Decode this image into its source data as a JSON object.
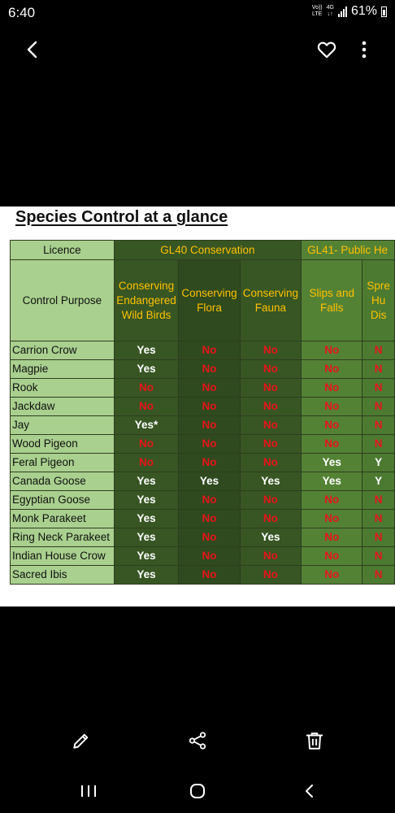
{
  "status_bar": {
    "time": "6:40",
    "volte_top": "Vo))",
    "volte_bottom": "LTE",
    "network": "4G",
    "battery": "61%"
  },
  "doc": {
    "title_main": "Species Control",
    "title_rest": " at a glance",
    "licence_label": "Licence",
    "gl40_label": "GL40 Conservation",
    "gl41_label": "GL41- Public He",
    "control_purpose_label": "Control Purpose",
    "purposes": [
      "Conserving Endangered Wild Birds",
      "Conserving Flora",
      "Conserving Fauna",
      "Slips and Falls",
      "Spre Hu Dis"
    ],
    "rows": [
      {
        "species": "Carrion Crow",
        "values": [
          "Yes",
          "No",
          "No",
          "No",
          "N"
        ]
      },
      {
        "species": "Magpie",
        "values": [
          "Yes",
          "No",
          "No",
          "No",
          "N"
        ]
      },
      {
        "species": "Rook",
        "values": [
          "No",
          "No",
          "No",
          "No",
          "N"
        ]
      },
      {
        "species": "Jackdaw",
        "values": [
          "No",
          "No",
          "No",
          "No",
          "N"
        ]
      },
      {
        "species": "Jay",
        "values": [
          "Yes*",
          "No",
          "No",
          "No",
          "N"
        ]
      },
      {
        "species": "Wood Pigeon",
        "values": [
          "No",
          "No",
          "No",
          "No",
          "N"
        ]
      },
      {
        "species": "Feral Pigeon",
        "values": [
          "No",
          "No",
          "No",
          "Yes",
          "Y"
        ]
      },
      {
        "species": "Canada Goose",
        "values": [
          "Yes",
          "Yes",
          "Yes",
          "Yes",
          "Y"
        ]
      },
      {
        "species": "Egyptian Goose",
        "values": [
          "Yes",
          "No",
          "No",
          "No",
          "N"
        ]
      },
      {
        "species": "Monk Parakeet",
        "values": [
          "Yes",
          "No",
          "No",
          "No",
          "N"
        ]
      },
      {
        "species": "Ring Neck Parakeet",
        "values": [
          "Yes",
          "No",
          "Yes",
          "No",
          "N"
        ]
      },
      {
        "species": "Indian House Crow",
        "values": [
          "Yes",
          "No",
          "No",
          "No",
          "N"
        ]
      },
      {
        "species": "Sacred Ibis",
        "values": [
          "Yes",
          "No",
          "No",
          "No",
          "N"
        ]
      }
    ]
  },
  "icons": {
    "top": [
      "back-arrow-icon",
      "heart-icon",
      "more-vertical-icon"
    ],
    "bottom": [
      "edit-pencil-icon",
      "share-icon",
      "trash-icon"
    ],
    "nav": [
      "recent-apps-icon",
      "home-icon",
      "back-icon"
    ]
  },
  "colors": {
    "header_light": "#a9d08e",
    "header_dark": "#375623",
    "header_mid": "#548235",
    "accent_yellow": "#ffc000",
    "no_red": "#e8141a"
  }
}
